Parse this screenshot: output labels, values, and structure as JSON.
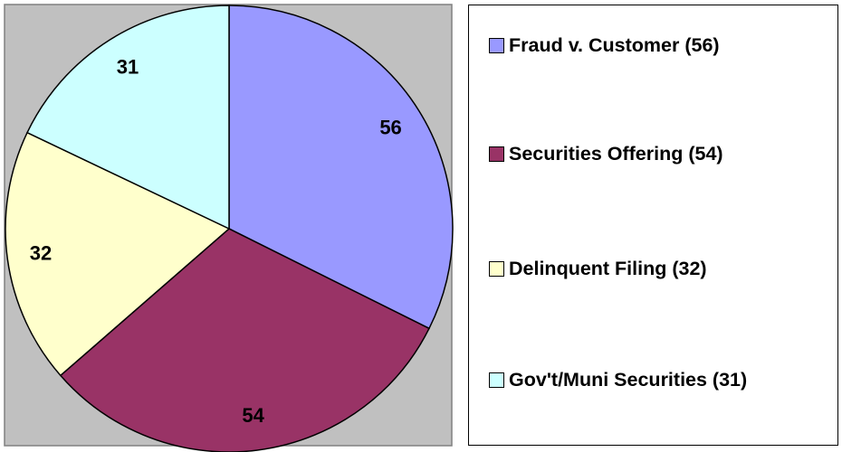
{
  "chart_data": {
    "type": "pie",
    "categories": [
      "Fraud v. Customer (56)",
      "Securities Offering (54)",
      "Delinquent Filing (32)",
      "Gov't/Muni Securities (31)"
    ],
    "values": [
      56,
      54,
      32,
      31
    ],
    "colors": [
      "#9999ff",
      "#993366",
      "#ffffcc",
      "#ccffff"
    ],
    "legend": "right"
  }
}
